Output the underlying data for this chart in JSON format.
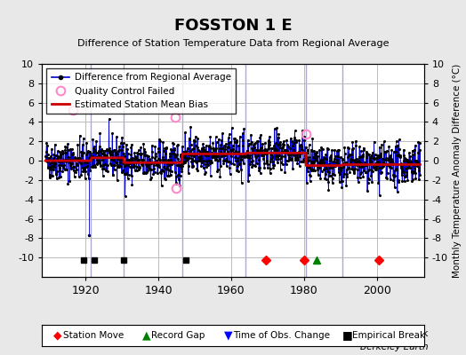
{
  "title": "FOSSTON 1 E",
  "subtitle": "Difference of Station Temperature Data from Regional Average",
  "ylabel_right": "Monthly Temperature Anomaly Difference (°C)",
  "credit": "Berkeley Earth",
  "xlim": [
    1908,
    2013
  ],
  "ylim": [
    -12,
    10
  ],
  "yticks": [
    -10,
    -8,
    -6,
    -4,
    -2,
    0,
    2,
    4,
    6,
    8,
    10
  ],
  "xticks": [
    1920,
    1940,
    1960,
    1980,
    2000
  ],
  "bg_color": "#e8e8e8",
  "plot_bg_color": "#ffffff",
  "grid_color": "#bbbbbb",
  "seed": 42,
  "data_start_year": 1909.0,
  "data_end_year": 2012.0,
  "segment_breaks": [
    1921.5,
    1930.5,
    1946.5,
    1964.0,
    1980.5,
    1990.5
  ],
  "segment_biases": [
    0.0,
    0.3,
    -0.2,
    0.7,
    0.8,
    -0.5,
    -0.4
  ],
  "vertical_lines": [
    1921.5,
    1930.5,
    1946.5,
    1964.0,
    1980.5,
    1990.5
  ],
  "qc_failed_points": [
    [
      1916.5,
      5.2
    ],
    [
      1944.5,
      4.5
    ],
    [
      1944.75,
      -2.8
    ],
    [
      1980.5,
      2.8
    ]
  ],
  "outlier_low": [
    1921.0,
    -7.7
  ],
  "station_moves": [
    1969.5,
    1980.0,
    2000.5
  ],
  "record_gaps": [
    1983.5
  ],
  "empirical_breaks": [
    1919.5,
    1922.5,
    1930.5,
    1947.5
  ],
  "line_color": "#0000cc",
  "bias_color": "#cc0000",
  "qc_color": "#ff88cc",
  "marker_color": "#000000"
}
